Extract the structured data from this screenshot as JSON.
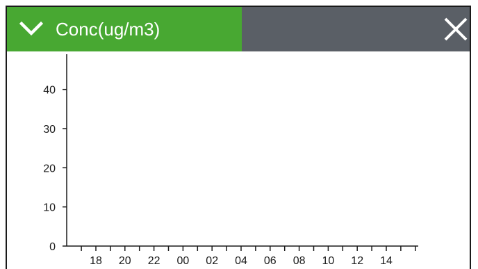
{
  "header": {
    "metric_label": "Conc(ug/m3)",
    "dropdown_icon": "chevron-down-icon",
    "close_icon": "close-icon"
  },
  "colors": {
    "accent": "#48a832",
    "header_bg": "#5a5f66",
    "axis": "#1a1a1a"
  },
  "chart_data": {
    "type": "line",
    "title": "",
    "xlabel": "",
    "ylabel": "",
    "x_ticks": [
      "18",
      "20",
      "22",
      "00",
      "02",
      "04",
      "06",
      "08",
      "10",
      "12",
      "14"
    ],
    "y_ticks": [
      0,
      10,
      20,
      30,
      40
    ],
    "ylim": [
      0,
      49
    ],
    "series": [],
    "grid": false
  }
}
